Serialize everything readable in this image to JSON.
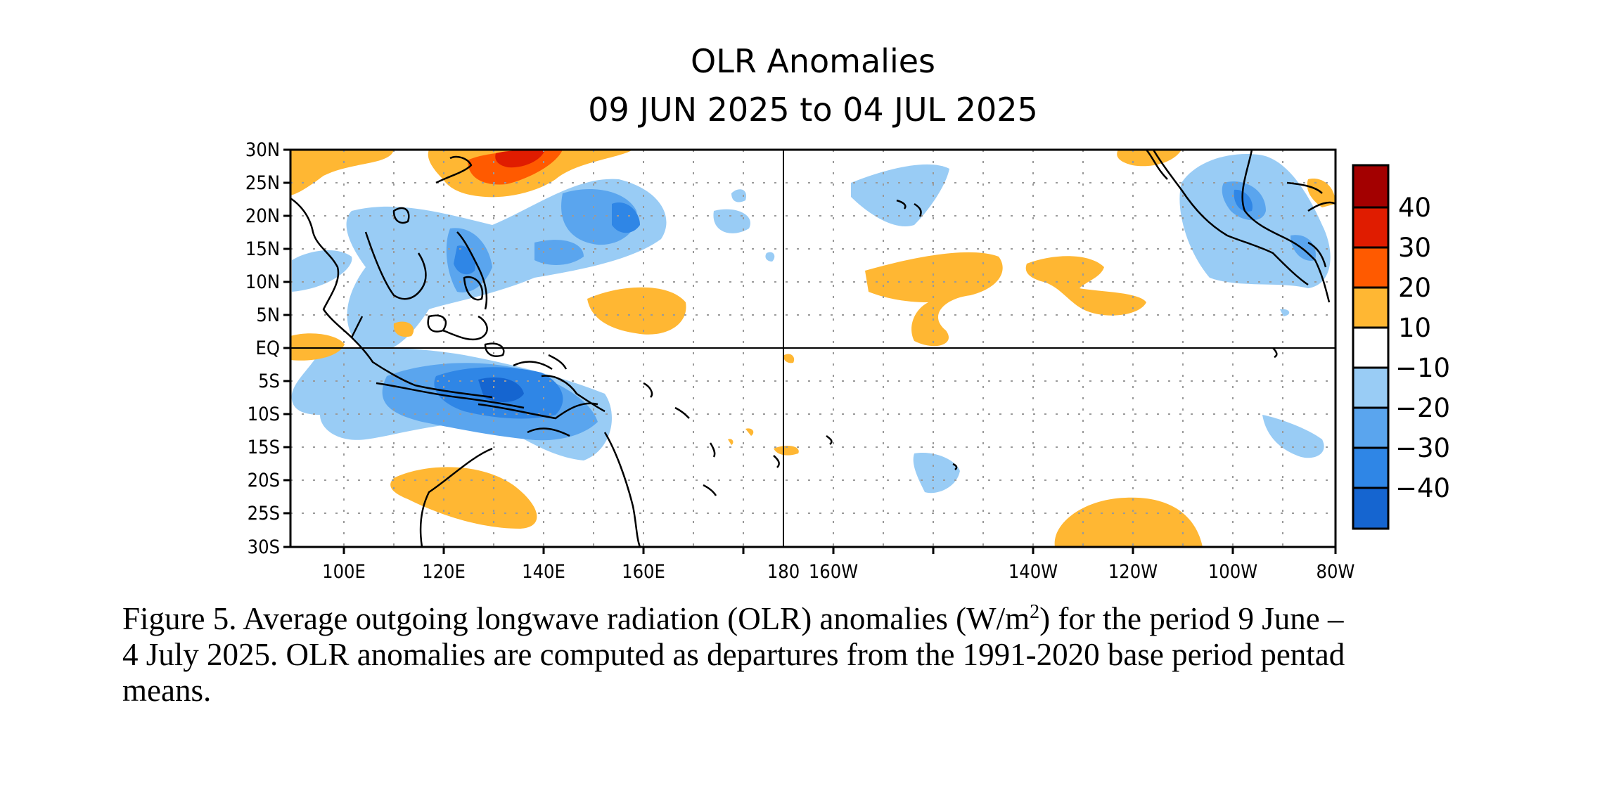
{
  "figure": {
    "title_line1": "OLR Anomalies",
    "title_line2": "09 JUN 2025 to 04 JUL 2025",
    "lat_labels": [
      "30N",
      "25N",
      "20N",
      "15N",
      "10N",
      "5N",
      "EQ",
      "5S",
      "10S",
      "15S",
      "20S",
      "25S",
      "30S"
    ],
    "lon_labels": [
      "100E",
      "120E",
      "140E",
      "160E",
      "180",
      "160W",
      "140W",
      "120W",
      "100W",
      "80W"
    ],
    "colorbar": {
      "tick_labels": [
        "40",
        "30",
        "20",
        "10",
        "−10",
        "−20",
        "−30",
        "−40"
      ],
      "colors": [
        "#a30000",
        "#e01c00",
        "#ff5a00",
        "#ffb733",
        "#ffffff",
        "#99ccf5",
        "#5aa5ee",
        "#2f86e6",
        "#1565d0"
      ]
    },
    "colors": {
      "strong_negative": "#1565d0",
      "negative_30": "#2f86e6",
      "negative_20": "#5aa5ee",
      "negative_10": "#99ccf5",
      "positive_10": "#ffb733",
      "positive_20": "#ff5a00",
      "positive_30": "#e01c00"
    }
  },
  "caption": {
    "lead": "Figure 5. Average outgoing longwave radiation (OLR) anomalies (W/m",
    "superscript": "2",
    "rest": ") for the period 9 June –",
    "line2": "4 July 2025.  OLR anomalies are computed as departures from the 1991-2020 base period pentad",
    "line3": "means."
  }
}
